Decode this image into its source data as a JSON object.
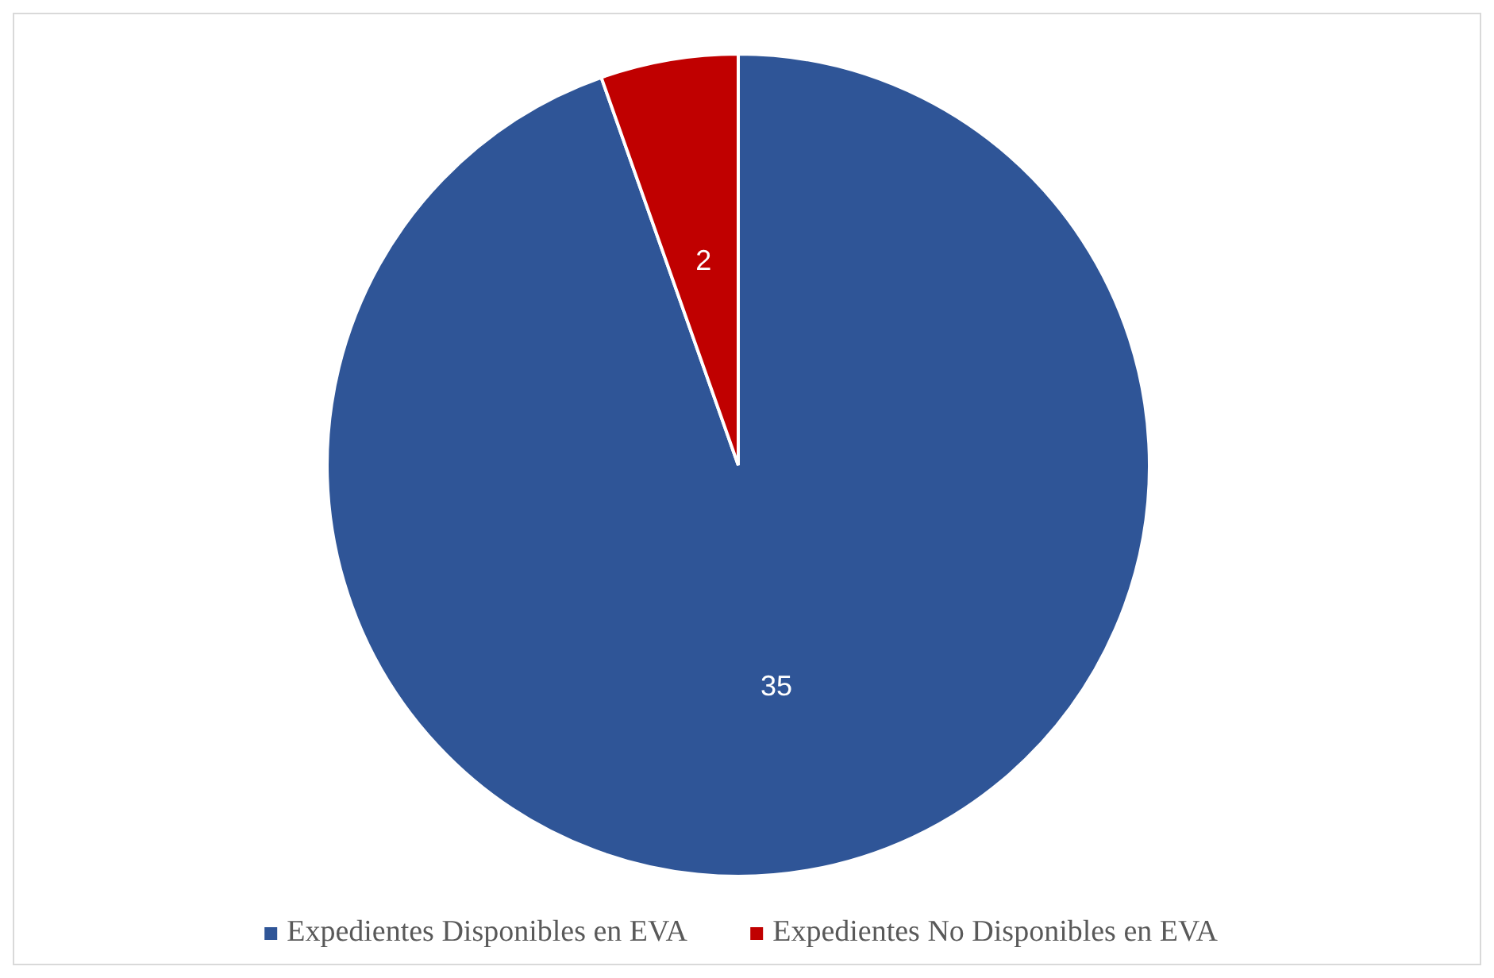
{
  "chart_data": {
    "type": "pie",
    "categories": [
      "Expedientes Disponibles en EVA",
      "Expedientes No Disponibles en EVA"
    ],
    "values": [
      35,
      2
    ],
    "colors": [
      "#2f5597",
      "#c00000"
    ],
    "data_labels": true,
    "legend": "bottom"
  }
}
